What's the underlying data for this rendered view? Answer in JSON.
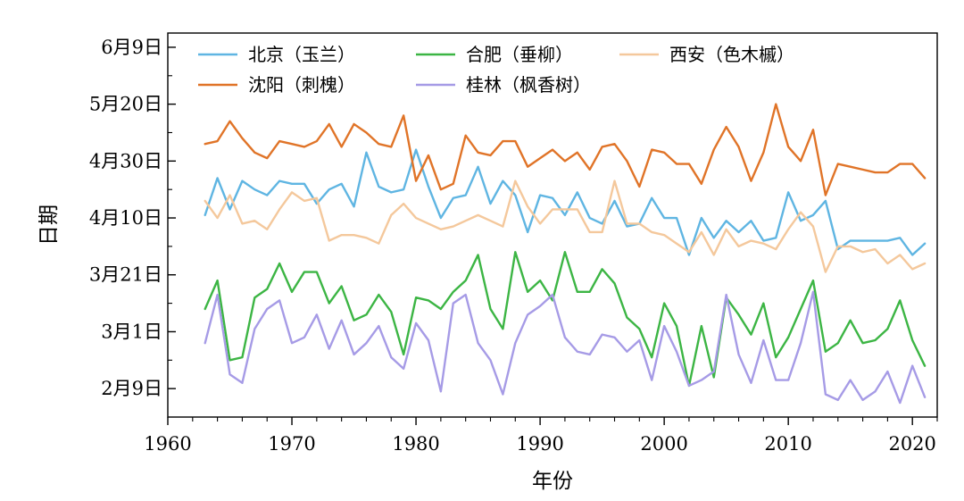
{
  "chart_data": {
    "type": "line",
    "title": "",
    "xlabel": "年份",
    "ylabel": "日期",
    "xlim": [
      1960,
      2022
    ],
    "x_ticks": [
      1960,
      1970,
      1980,
      1990,
      2000,
      2010,
      2020
    ],
    "y_scale_unit": "day-of-year",
    "ylim": [
      30,
      165
    ],
    "y_ticks": [
      {
        "label": "2月9日",
        "value": 40
      },
      {
        "label": "3月1日",
        "value": 60
      },
      {
        "label": "3月21日",
        "value": 80
      },
      {
        "label": "4月10日",
        "value": 100
      },
      {
        "label": "4月30日",
        "value": 120
      },
      {
        "label": "5月20日",
        "value": 140
      },
      {
        "label": "6月9日",
        "value": 160
      }
    ],
    "grid": false,
    "legend_position": "top-left, inside plot",
    "legend_ncol": 3,
    "x": [
      1963,
      1964,
      1965,
      1966,
      1967,
      1968,
      1969,
      1970,
      1971,
      1972,
      1973,
      1974,
      1975,
      1976,
      1977,
      1978,
      1979,
      1980,
      1981,
      1982,
      1983,
      1984,
      1985,
      1986,
      1987,
      1988,
      1989,
      1990,
      1991,
      1992,
      1993,
      1994,
      1995,
      1996,
      1997,
      1998,
      1999,
      2000,
      2001,
      2002,
      2003,
      2004,
      2005,
      2006,
      2007,
      2008,
      2009,
      2010,
      2011,
      2012,
      2013,
      2014,
      2015,
      2016,
      2017,
      2018,
      2019,
      2020,
      2021
    ],
    "series": [
      {
        "name": "北京（玉兰）",
        "color": "#5fb5e2",
        "values": [
          101,
          114,
          103,
          113,
          110,
          108,
          113,
          112,
          112,
          105,
          110,
          112,
          104,
          123,
          111,
          109,
          110,
          124,
          111,
          100,
          107,
          108,
          118,
          105,
          113,
          108,
          95,
          108,
          107,
          101,
          109,
          100,
          98,
          106,
          97,
          98,
          107,
          100,
          100,
          87,
          100,
          93,
          99,
          95,
          99,
          92,
          93,
          109,
          99,
          101,
          106,
          89,
          92,
          92,
          92,
          92,
          93,
          87,
          91
        ],
        "visible_until": 2021
      },
      {
        "name": "合肥（垂柳）",
        "color": "#3cb544",
        "values": [
          68,
          78,
          50,
          51,
          72,
          75,
          84,
          74,
          81,
          81,
          70,
          76,
          64,
          66,
          73,
          67,
          52,
          72,
          71,
          68,
          74,
          78,
          87,
          68,
          61,
          88,
          74,
          78,
          71,
          88,
          74,
          74,
          82,
          77,
          65,
          61,
          51,
          70,
          62,
          41,
          62,
          44,
          72,
          66,
          59,
          70,
          51,
          58,
          68,
          78,
          53,
          56,
          64,
          56,
          57,
          61,
          71,
          57,
          48
        ],
        "visible_until": 2021
      },
      {
        "name": "西安（色木槭）",
        "color": "#f4c89c",
        "values": [
          106,
          100,
          108,
          98,
          99,
          96,
          103,
          109,
          106,
          107,
          92,
          94,
          94,
          93,
          91,
          101,
          105,
          100,
          98,
          96,
          97,
          99,
          101,
          99,
          97,
          113,
          104,
          98,
          103,
          103,
          103,
          95,
          95,
          113,
          98,
          98,
          95,
          94,
          91,
          88,
          95,
          87,
          96,
          90,
          92,
          91,
          89,
          96,
          102,
          97,
          81,
          90,
          90,
          88,
          89,
          84,
          87,
          82,
          84
        ],
        "visible_until": 2021
      },
      {
        "name": "沈阳（刺槐）",
        "color": "#e07428",
        "values": [
          126,
          127,
          134,
          128,
          123,
          121,
          127,
          126,
          125,
          127,
          133,
          125,
          133,
          130,
          126,
          125,
          136,
          113,
          122,
          110,
          112,
          129,
          123,
          122,
          127,
          127,
          118,
          121,
          124,
          120,
          123,
          117,
          125,
          126,
          120,
          111,
          124,
          123,
          119,
          119,
          112,
          124,
          132,
          125,
          113,
          123,
          140,
          125,
          120,
          131,
          108,
          119,
          118,
          117,
          116,
          116,
          119,
          119,
          114
        ],
        "visible_until": 2021
      },
      {
        "name": "桂林（枫香树）",
        "color": "#a69be6",
        "values": [
          56,
          73,
          45,
          42,
          61,
          68,
          71,
          56,
          58,
          66,
          54,
          64,
          52,
          56,
          62,
          51,
          47,
          63,
          57,
          39,
          70,
          73,
          56,
          50,
          38,
          56,
          66,
          69,
          73,
          58,
          53,
          52,
          59,
          58,
          53,
          57,
          43,
          62,
          53,
          41,
          43,
          46,
          73,
          52,
          42,
          57,
          43,
          43,
          56,
          74,
          38,
          36,
          43,
          36,
          39,
          46,
          35,
          48,
          37
        ],
        "visible_until": 2021
      }
    ]
  }
}
